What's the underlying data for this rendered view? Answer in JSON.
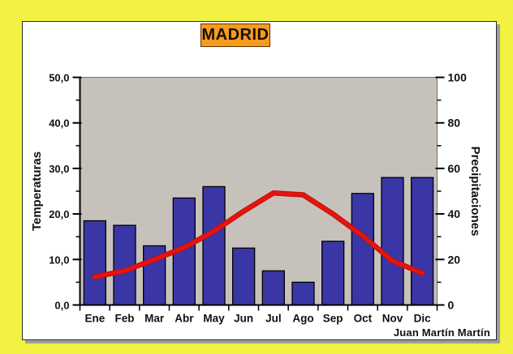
{
  "signature": "Juan Martín Martín",
  "colors": {
    "page_background": "#f2f243",
    "panel_background": "#ffffff",
    "title_background": "#f79b1e",
    "plot_background": "#c6c2bb",
    "bar_fill": "#3b36a5",
    "bar_border": "#000000",
    "line_color": "#e51410",
    "axis_color": "#000000",
    "text_color": "#111111"
  },
  "chart_data": {
    "type": "combo",
    "title": "MADRID",
    "categories": [
      "Ene",
      "Feb",
      "Mar",
      "Abr",
      "May",
      "Jun",
      "Jul",
      "Ago",
      "Sep",
      "Oct",
      "Nov",
      "Dic"
    ],
    "series": [
      {
        "name": "Precipitaciones",
        "type": "bar",
        "axis": "right",
        "values": [
          37,
          35,
          26,
          47,
          52,
          25,
          15,
          10,
          28,
          49,
          56,
          56
        ]
      },
      {
        "name": "Temperaturas",
        "type": "line",
        "axis": "left",
        "values": [
          6.2,
          7.5,
          10.0,
          12.6,
          16.2,
          20.6,
          24.6,
          24.2,
          20.0,
          15.2,
          9.7,
          7.0
        ]
      }
    ],
    "y_left": {
      "label": "Temperaturas",
      "min": 0,
      "max": 50,
      "major_ticks": [
        0,
        10,
        20,
        30,
        40,
        50
      ],
      "tick_labels": [
        "0,0",
        "10,0",
        "20,0",
        "30,0",
        "40,0",
        "50,0"
      ],
      "minor_step": 5
    },
    "y_right": {
      "label": "Precipitaciones",
      "min": 0,
      "max": 100,
      "major_ticks": [
        0,
        20,
        40,
        60,
        80,
        100
      ],
      "tick_labels": [
        "0",
        "20",
        "40",
        "60",
        "80",
        "100"
      ],
      "minor_step": 10
    },
    "grid": false,
    "legend": "none"
  }
}
